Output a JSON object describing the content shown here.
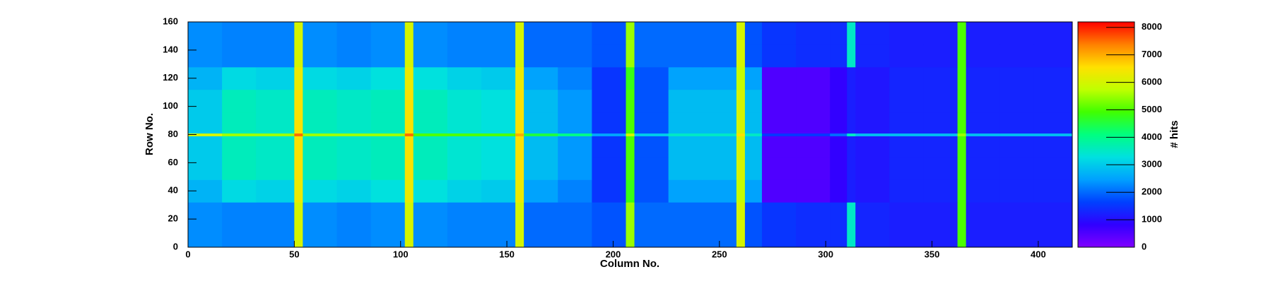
{
  "chart_data": {
    "type": "heatmap",
    "x_label": "Column No.",
    "y_label": "Row No.",
    "z_label": "# hits",
    "xbins": [
      0,
      16,
      32,
      50,
      54,
      70,
      86,
      102,
      106,
      122,
      138,
      154,
      158,
      174,
      190,
      206,
      210,
      226,
      242,
      258,
      262,
      270,
      286,
      302,
      310,
      314,
      330,
      346,
      362,
      366,
      382,
      398,
      416
    ],
    "ybins": [
      0,
      16,
      32,
      48,
      64,
      79,
      81,
      96,
      112,
      128,
      144,
      160
    ],
    "z": [
      [
        2300,
        2200,
        2200,
        6000,
        2300,
        2200,
        2300,
        6000,
        2300,
        2200,
        2200,
        6000,
        2000,
        2000,
        1800,
        5500,
        2000,
        2000,
        2000,
        6000,
        1800,
        1500,
        1400,
        1400,
        3500,
        1300,
        1200,
        1200,
        5000,
        1200,
        1200,
        1200
      ],
      [
        2300,
        2200,
        2200,
        6000,
        2300,
        2200,
        2300,
        6000,
        2300,
        2200,
        2200,
        6000,
        2000,
        2000,
        1800,
        5500,
        2000,
        2000,
        2000,
        6000,
        1800,
        1500,
        1400,
        1400,
        3500,
        1300,
        1200,
        1200,
        5000,
        1200,
        1200,
        1200
      ],
      [
        2700,
        3200,
        3100,
        6300,
        3200,
        3100,
        3300,
        6300,
        3300,
        3100,
        3000,
        6300,
        2500,
        2200,
        1500,
        4800,
        1800,
        2500,
        2500,
        5800,
        2500,
        500,
        500,
        800,
        1200,
        1100,
        1300,
        1300,
        5000,
        1300,
        1300,
        1300
      ],
      [
        3000,
        3600,
        3500,
        6500,
        3600,
        3500,
        3600,
        6500,
        3600,
        3400,
        3300,
        6500,
        2800,
        2400,
        1500,
        5000,
        1800,
        2800,
        2800,
        6000,
        2800,
        500,
        500,
        800,
        1200,
        1100,
        1300,
        1300,
        5000,
        1300,
        1300,
        1300
      ],
      [
        3000,
        3600,
        3500,
        6500,
        3600,
        3500,
        3600,
        6500,
        3600,
        3400,
        3300,
        6500,
        2800,
        2400,
        1500,
        5000,
        1800,
        2800,
        2800,
        6000,
        2800,
        500,
        500,
        800,
        1200,
        1100,
        1300,
        1300,
        5000,
        1300,
        1300,
        1300
      ],
      [
        6000,
        5500,
        5500,
        7500,
        5500,
        5500,
        5500,
        7500,
        5000,
        5000,
        5000,
        7000,
        4500,
        4000,
        2500,
        6000,
        3000,
        3500,
        3500,
        6500,
        3500,
        1500,
        1500,
        2000,
        3500,
        2800,
        2800,
        2800,
        5500,
        2800,
        2800,
        2800
      ],
      [
        3000,
        3600,
        3500,
        6500,
        3600,
        3500,
        3600,
        6500,
        3600,
        3400,
        3300,
        6500,
        2800,
        2400,
        1500,
        5000,
        1800,
        2800,
        2800,
        6000,
        2800,
        500,
        500,
        800,
        1200,
        1100,
        1300,
        1300,
        5000,
        1300,
        1300,
        1300
      ],
      [
        3000,
        3600,
        3500,
        6500,
        3600,
        3500,
        3600,
        6500,
        3600,
        3400,
        3300,
        6500,
        2800,
        2400,
        1500,
        5000,
        1800,
        2800,
        2800,
        6000,
        2800,
        500,
        500,
        800,
        1200,
        1100,
        1300,
        1300,
        5000,
        1300,
        1300,
        1300
      ],
      [
        2700,
        3200,
        3100,
        6300,
        3200,
        3100,
        3300,
        6300,
        3300,
        3100,
        3000,
        6300,
        2500,
        2200,
        1500,
        4800,
        1800,
        2500,
        2500,
        5800,
        2500,
        500,
        500,
        800,
        1200,
        1100,
        1300,
        1300,
        5000,
        1300,
        1300,
        1300
      ],
      [
        2300,
        2200,
        2200,
        6000,
        2300,
        2200,
        2300,
        6000,
        2300,
        2200,
        2200,
        6000,
        2000,
        2000,
        1800,
        5500,
        2000,
        2000,
        2000,
        6000,
        1800,
        1500,
        1400,
        1400,
        3500,
        1300,
        1200,
        1200,
        5000,
        1200,
        1200,
        1200
      ],
      [
        2300,
        2200,
        2200,
        6000,
        2300,
        2200,
        2300,
        6000,
        2300,
        2200,
        2200,
        6000,
        2000,
        2000,
        1800,
        5500,
        2000,
        2000,
        2000,
        6000,
        1800,
        1500,
        1400,
        1400,
        3500,
        1300,
        1200,
        1200,
        5000,
        1200,
        1200,
        1200
      ]
    ],
    "xlim": [
      0,
      416
    ],
    "xticks": [
      0,
      50,
      100,
      150,
      200,
      250,
      300,
      350,
      400
    ],
    "ylim": [
      0,
      160
    ],
    "yticks": [
      0,
      20,
      40,
      60,
      80,
      100,
      120,
      140,
      160
    ],
    "zlim": [
      0,
      8200
    ],
    "zticks": [
      0,
      1000,
      2000,
      3000,
      4000,
      5000,
      6000,
      7000,
      8000
    ],
    "colorscale": [
      "#8000ff",
      "#3000ff",
      "#0040ff",
      "#00a0ff",
      "#00e0e0",
      "#00ff80",
      "#40ff00",
      "#c0ff00",
      "#ffe000",
      "#ff8000",
      "#ff0000"
    ]
  }
}
